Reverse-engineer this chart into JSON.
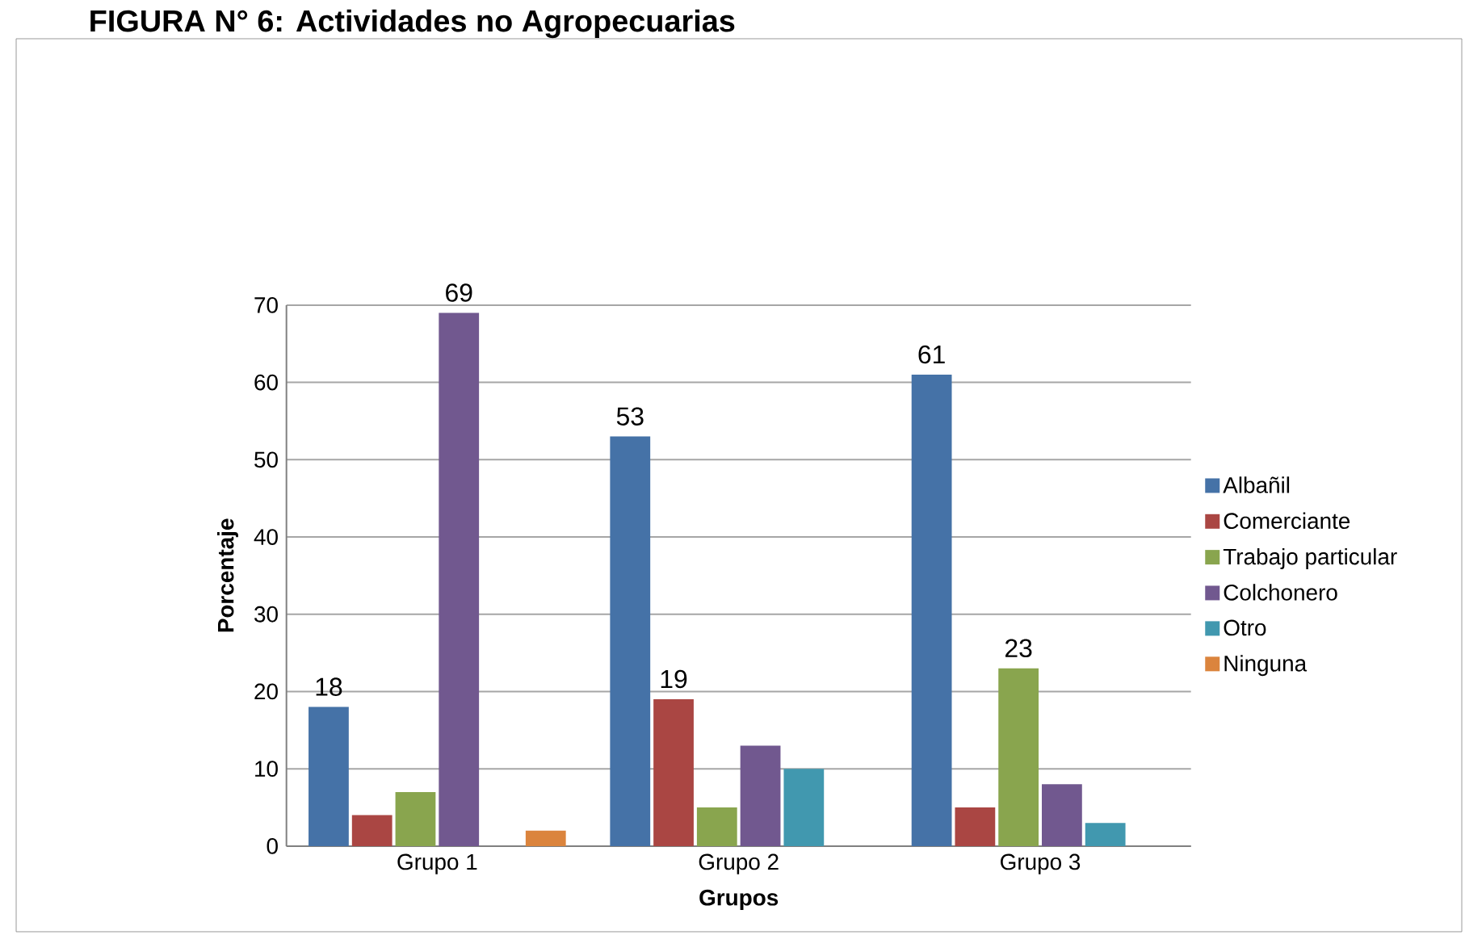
{
  "chart_data": {
    "type": "bar",
    "title": "FIGURA N° 6: Actividades no Agropecuarias",
    "xlabel": "Grupos",
    "ylabel": "Porcentaje",
    "categories": [
      "Grupo 1",
      "Grupo 2",
      "Grupo 3"
    ],
    "series": [
      {
        "name": "Albañil",
        "color": "#4572a7",
        "values": [
          18,
          53,
          61
        ],
        "value_labels": [
          "18",
          "53",
          "61"
        ]
      },
      {
        "name": "Comerciante",
        "color": "#aa4643",
        "values": [
          4,
          19,
          5
        ],
        "value_labels": [
          null,
          "19",
          null
        ]
      },
      {
        "name": "Trabajo particular",
        "color": "#89a54e",
        "values": [
          7,
          5,
          23
        ],
        "value_labels": [
          null,
          null,
          "23"
        ]
      },
      {
        "name": "Colchonero",
        "color": "#71588f",
        "values": [
          69,
          13,
          8
        ],
        "value_labels": [
          "69",
          null,
          null
        ]
      },
      {
        "name": "Otro",
        "color": "#4198af",
        "values": [
          0,
          10,
          3
        ]
      },
      {
        "name": "Ninguna",
        "color": "#db843d",
        "values": [
          2,
          0,
          0
        ]
      }
    ],
    "ylim": [
      0,
      70
    ],
    "yticks": [
      0,
      10,
      20,
      30,
      40,
      50,
      60,
      70
    ],
    "grid": "y",
    "legend": "right"
  }
}
